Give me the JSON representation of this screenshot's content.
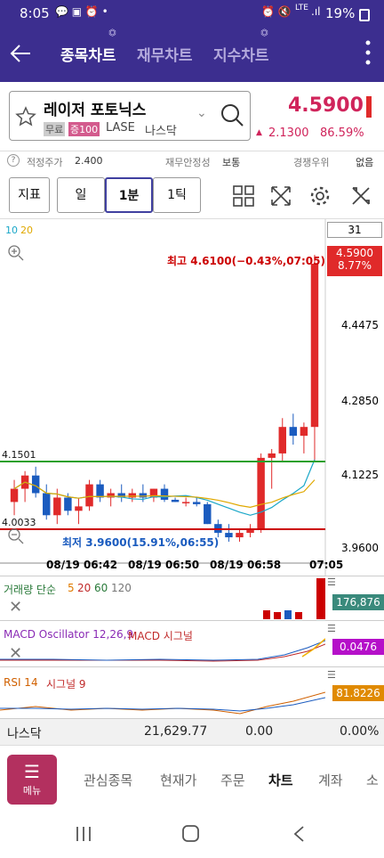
{
  "status_bar": {
    "time": "8:05",
    "battery": "19%",
    "network": "LTE"
  },
  "nav": {
    "tabs": [
      {
        "label": "종목차트",
        "active": true
      },
      {
        "label": "재무차트",
        "active": false
      },
      {
        "label": "지수차트",
        "active": false
      }
    ]
  },
  "stock": {
    "name": "레이저 포토닉스",
    "badge_free": "무료",
    "badge_margin": "증100",
    "ticker": "LASE",
    "market": "나스닥",
    "price": "4.5900",
    "change": "2.1300",
    "change_pct": "86.59%",
    "color_up": "#e0245e"
  },
  "info": {
    "fair_price_label": "적정주가",
    "fair_price": "2.400",
    "fin_stability_label": "재무안정성",
    "fin_stability": "보통",
    "competition_label": "경쟁우위",
    "competition": "없음"
  },
  "toolbar": {
    "indicator": "지표",
    "period": "일",
    "minute": "1분",
    "tick": "1틱"
  },
  "chart": {
    "ma_labels": [
      "10",
      "20"
    ],
    "count": "31",
    "high_label": "최고 4.6100(−0.43%,07:05)",
    "low_label": "최저 3.9600(15.91%,06:55)",
    "price_box": "4.5900",
    "pct_box": "8.77%",
    "y_ticks": [
      "4.4475",
      "4.2850",
      "4.1225",
      "3.9600"
    ],
    "left_marks": [
      "4.1501",
      "4.0033"
    ],
    "x_ticks": [
      "08/19 06:42",
      "08/19 06:50",
      "08/19 06:58",
      "07:05"
    ]
  },
  "chart_data": {
    "type": "candlestick",
    "y_range": [
      3.96,
      4.61
    ],
    "candles": [
      [
        4.05,
        4.1,
        4.02,
        4.08
      ],
      [
        4.08,
        4.12,
        4.05,
        4.11
      ],
      [
        4.11,
        4.13,
        4.06,
        4.07
      ],
      [
        4.07,
        4.09,
        4.01,
        4.02
      ],
      [
        4.02,
        4.08,
        4.0,
        4.06
      ],
      [
        4.06,
        4.07,
        4.02,
        4.03
      ],
      [
        4.03,
        4.06,
        4.0,
        4.04
      ],
      [
        4.04,
        4.1,
        4.03,
        4.09
      ],
      [
        4.09,
        4.1,
        4.05,
        4.06
      ],
      [
        4.06,
        4.08,
        4.04,
        4.07
      ],
      [
        4.07,
        4.09,
        4.05,
        4.06
      ],
      [
        4.06,
        4.08,
        4.05,
        4.07
      ],
      [
        4.07,
        4.09,
        4.05,
        4.06
      ],
      [
        4.06,
        4.08,
        4.05,
        4.08
      ],
      [
        4.08,
        4.09,
        4.05,
        4.055
      ],
      [
        4.055,
        4.06,
        4.05,
        4.05
      ],
      [
        4.05,
        4.06,
        4.04,
        4.05
      ],
      [
        4.05,
        4.06,
        4.04,
        4.045
      ],
      [
        4.045,
        4.05,
        4.0,
        4.0
      ],
      [
        4.0,
        4.01,
        3.97,
        3.98
      ],
      [
        3.98,
        4.0,
        3.96,
        3.97
      ],
      [
        3.97,
        3.99,
        3.96,
        3.98
      ],
      [
        3.98,
        4.0,
        3.97,
        3.99
      ],
      [
        3.99,
        4.16,
        3.98,
        4.15
      ],
      [
        4.15,
        4.17,
        4.08,
        4.16
      ],
      [
        4.16,
        4.24,
        4.14,
        4.22
      ],
      [
        4.22,
        4.25,
        4.18,
        4.2
      ],
      [
        4.2,
        4.23,
        4.16,
        4.22
      ],
      [
        4.22,
        4.61,
        4.14,
        4.59
      ]
    ],
    "ma10_color": "#1aa7c8",
    "ma20_color": "#e0a800"
  },
  "indicators": {
    "volume_label": "거래량 단순",
    "volume_periods": [
      "5",
      "20",
      "60",
      "120"
    ],
    "volume_value": "176,876",
    "macd_label": "MACD Oscillator 12,26,9",
    "macd_label2": "MACD 시그널",
    "macd_value": "0.0476",
    "rsi_label": "RSI 14",
    "rsi_label2": "시그널 9",
    "rsi_value": "81.8226"
  },
  "index_bar": {
    "name": "나스닥",
    "value": "21,629.77",
    "change": "0.00",
    "pct": "0.00%"
  },
  "menu": {
    "button": "메뉴",
    "items": [
      "관심종목",
      "현재가",
      "주문",
      "차트",
      "계좌",
      "소"
    ]
  }
}
